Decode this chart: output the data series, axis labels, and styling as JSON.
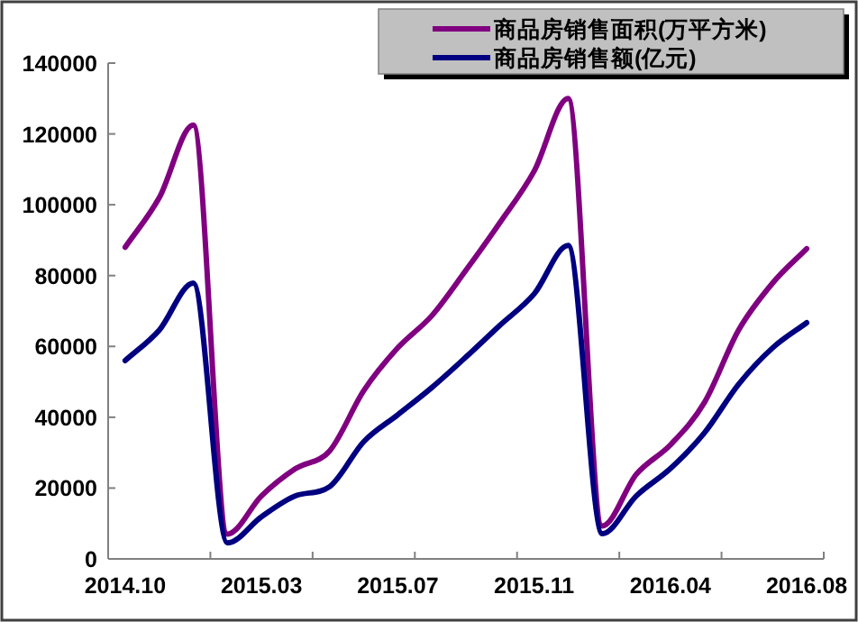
{
  "chart_data": {
    "type": "line",
    "categories": [
      "2014.10",
      null,
      null,
      null,
      "2015.03",
      null,
      null,
      null,
      "2015.07",
      null,
      null,
      null,
      "2015.11",
      null,
      null,
      null,
      "2016.04",
      null,
      null,
      null,
      "2016.08"
    ],
    "series": [
      {
        "name": "商品房销售面积(万平方米)",
        "color": "#800080",
        "values": [
          88000,
          102000,
          122500,
          7000,
          17800,
          25500,
          30500,
          47500,
          59600,
          68700,
          81500,
          95000,
          109500,
          130000,
          9300,
          23900,
          32200,
          44200,
          64600,
          77900,
          87600
        ]
      },
      {
        "name": "商品房销售额(亿元)",
        "color": "#000080",
        "values": [
          56000,
          64600,
          77900,
          4500,
          11900,
          17800,
          20400,
          33100,
          40700,
          48400,
          57000,
          66000,
          74800,
          88500,
          7100,
          17800,
          25500,
          35600,
          49300,
          59600,
          66700
        ]
      }
    ],
    "ylim": [
      0,
      140000
    ],
    "yticks": [
      0,
      20000,
      40000,
      60000,
      80000,
      100000,
      120000,
      140000
    ],
    "grid": false,
    "legend": "top right",
    "marker": "none",
    "line_style": "solid"
  }
}
